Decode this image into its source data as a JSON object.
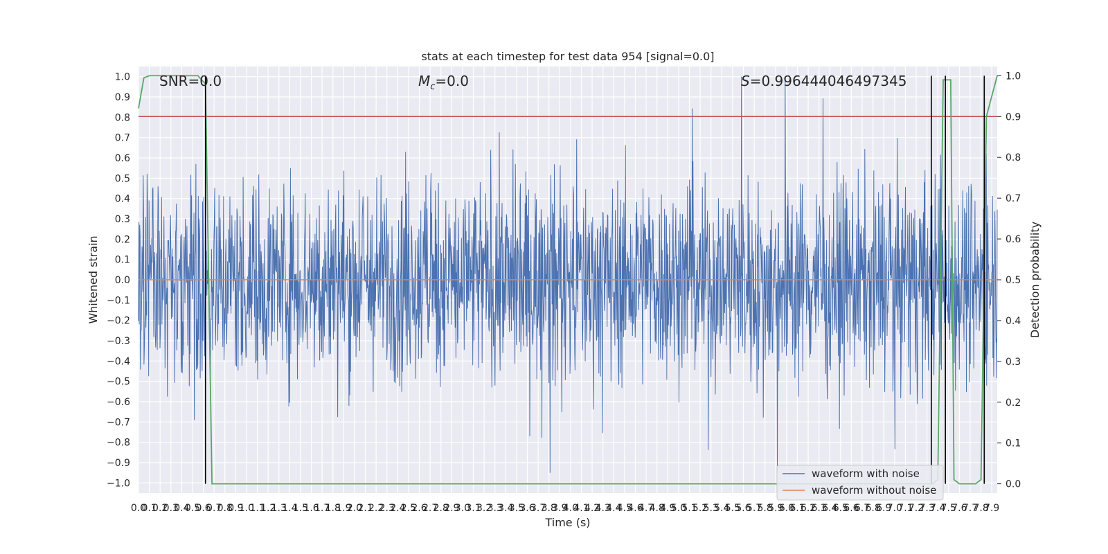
{
  "chart_data": {
    "type": "line",
    "title": "stats at each timestep for test data 954 [signal=0.0]",
    "xlabel": "Time (s)",
    "ylabel": "Whitened strain",
    "y2label": "Detection probability",
    "xlim": [
      0.0,
      7.95
    ],
    "ylim": [
      -1.05,
      1.05
    ],
    "y2lim": [
      -0.0227,
      1.0227
    ],
    "xticks": [
      0.0,
      0.1,
      0.2,
      0.3,
      0.4,
      0.5,
      0.6,
      0.7,
      0.8,
      0.9,
      1.0,
      1.1,
      1.2,
      1.3,
      1.4,
      1.5,
      1.6,
      1.7,
      1.8,
      1.9,
      2.0,
      2.1,
      2.2,
      2.3,
      2.4,
      2.5,
      2.6,
      2.7,
      2.8,
      2.9,
      3.0,
      3.1,
      3.2,
      3.3,
      3.4,
      3.5,
      3.6,
      3.7,
      3.8,
      3.9,
      4.0,
      4.1,
      4.2,
      4.3,
      4.4,
      4.5,
      4.6,
      4.7,
      4.8,
      4.9,
      5.0,
      5.1,
      5.2,
      5.3,
      5.4,
      5.5,
      5.6,
      5.7,
      5.8,
      5.9,
      6.0,
      6.1,
      6.2,
      6.3,
      6.4,
      6.5,
      6.6,
      6.7,
      6.8,
      6.9,
      7.0,
      7.1,
      7.2,
      7.3,
      7.4,
      7.5,
      7.6,
      7.7,
      7.8,
      7.9
    ],
    "yticks": [
      -1.0,
      -0.9,
      -0.8,
      -0.7,
      -0.6,
      -0.5,
      -0.4,
      -0.3,
      -0.2,
      -0.1,
      0.0,
      0.1,
      0.2,
      0.3,
      0.4,
      0.5,
      0.6,
      0.7,
      0.8,
      0.9,
      1.0
    ],
    "y2ticks": [
      0.0,
      0.1,
      0.2,
      0.3,
      0.4,
      0.5,
      0.6,
      0.7,
      0.8,
      0.9,
      1.0
    ],
    "grid": true,
    "legend_position": "lower-right",
    "annotations": {
      "snr": "SNR=0.0",
      "mc_symbol": "M",
      "mc_sub": "c",
      "mc_value": "=0.0",
      "s_symbol": "S",
      "s_value": "=0.996444046497345"
    },
    "series": [
      {
        "name": "waveform with noise",
        "color": "#4c72b0",
        "style": "noise",
        "amplitude_range": [
          -0.95,
          1.0
        ]
      },
      {
        "name": "waveform without noise",
        "color": "#dd8452",
        "values": [
          0.0,
          0.0
        ]
      }
    ],
    "threshold": {
      "y2": 0.9,
      "color": "#c44e52"
    },
    "detection_probability": {
      "color": "#55a868",
      "x": [
        0.0,
        0.05,
        0.1,
        0.15,
        0.3,
        0.45,
        0.55,
        0.62,
        0.68,
        7.35,
        7.4,
        7.45,
        7.52,
        7.55,
        7.6,
        7.75,
        7.8,
        7.85,
        7.95
      ],
      "y": [
        0.92,
        0.995,
        1.0,
        1.0,
        1.0,
        1.0,
        1.0,
        0.98,
        0.0,
        0.0,
        0.01,
        0.99,
        0.99,
        0.01,
        0.0,
        0.0,
        0.01,
        0.9,
        1.0
      ]
    },
    "vertical_markers": [
      0.62,
      7.34,
      7.47,
      7.83
    ]
  }
}
